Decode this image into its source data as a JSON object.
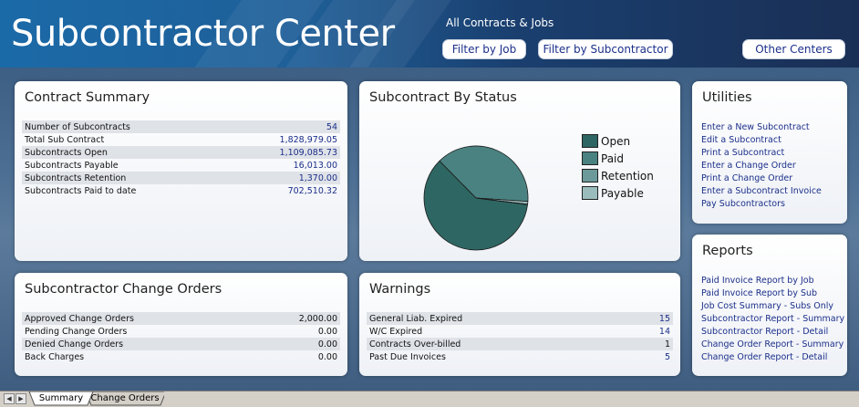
{
  "header": {
    "title": "Subcontractor Center",
    "subtitle": "All Contracts & Jobs",
    "buttons": {
      "filter_job": "Filter by Job",
      "filter_sub": "Filter by Subcontractor",
      "other_centers": "Other Centers"
    }
  },
  "contract_summary": {
    "title": "Contract Summary",
    "rows": [
      {
        "label": "Number of Subcontracts",
        "value": "54"
      },
      {
        "label": "Total Sub Contract",
        "value": "1,828,979.05"
      },
      {
        "label": "Subcontracts Open",
        "value": "1,109,085.73"
      },
      {
        "label": "Subcontracts Payable",
        "value": "16,013.00"
      },
      {
        "label": "Subcontracts Retention",
        "value": "1,370.00"
      },
      {
        "label": "Subcontracts Paid to date",
        "value": "702,510.32"
      }
    ]
  },
  "status_chart": {
    "title": "Subcontract By Status",
    "chart_data": {
      "type": "pie",
      "categories": [
        "Open",
        "Paid",
        "Retention",
        "Payable"
      ],
      "values": [
        1109085.73,
        702510.32,
        1370.0,
        16013.0
      ],
      "colors": [
        "#2e6663",
        "#4a8281",
        "#6c9a9a",
        "#9bbcbd"
      ],
      "legend_position": "right"
    }
  },
  "utilities": {
    "title": "Utilities",
    "links": [
      "Enter a New Subcontract",
      "Edit a Subcontract",
      "Print a Subcontract",
      "Enter a Change Order",
      "Print a Change Order",
      "Enter a Subcontract Invoice",
      "Pay Subcontractors"
    ]
  },
  "change_orders": {
    "title": "Subcontractor Change Orders",
    "rows": [
      {
        "label": "Approved Change Orders",
        "value": "2,000.00"
      },
      {
        "label": "Pending Change Orders",
        "value": "0.00"
      },
      {
        "label": "Denied Change Orders",
        "value": "0.00"
      },
      {
        "label": "Back Charges",
        "value": "0.00"
      }
    ]
  },
  "warnings": {
    "title": "Warnings",
    "rows": [
      {
        "label": "General Liab. Expired",
        "value": "15"
      },
      {
        "label": "W/C Expired",
        "value": "14"
      },
      {
        "label": "Contracts Over-billed",
        "value": "1"
      },
      {
        "label": "Past Due Invoices",
        "value": "5"
      }
    ]
  },
  "reports": {
    "title": "Reports",
    "links": [
      "Paid Invoice Report by Job",
      "Paid Invoice Report by Sub",
      "Job Cost Summary - Subs Only",
      "Subcontractor Report - Summary",
      "Subcontractor Report - Detail",
      "Change Order Report - Summary",
      "Change Order Report - Detail"
    ]
  },
  "tabs": [
    "Summary",
    "Change Orders"
  ]
}
